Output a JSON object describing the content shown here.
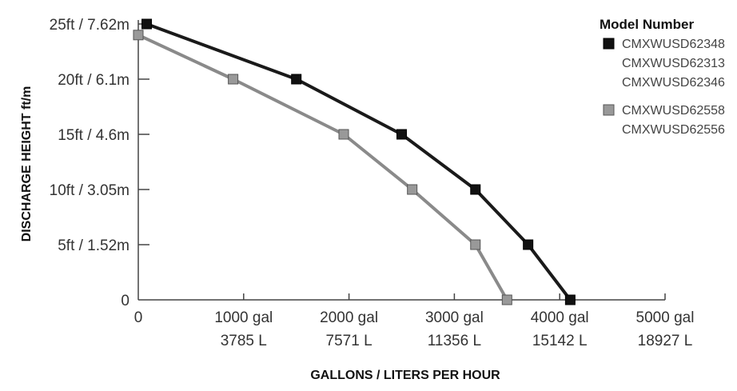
{
  "chart_data": {
    "type": "line",
    "title": "",
    "xlabel": "GALLONS / LITERS PER HOUR",
    "ylabel": "DISCHARGE HEIGHT ft/m",
    "xlim": [
      0,
      5000
    ],
    "ylim": [
      0,
      25
    ],
    "x_ticks": [
      {
        "value": 0,
        "line1": "0",
        "line2": ""
      },
      {
        "value": 1000,
        "line1": "1000 gal",
        "line2": "3785 L"
      },
      {
        "value": 2000,
        "line1": "2000 gal",
        "line2": "7571 L"
      },
      {
        "value": 3000,
        "line1": "3000 gal",
        "line2": "11356 L"
      },
      {
        "value": 4000,
        "line1": "4000 gal",
        "line2": "15142 L"
      },
      {
        "value": 5000,
        "line1": "5000 gal",
        "line2": "18927 L"
      }
    ],
    "y_ticks": [
      {
        "value": 0,
        "label": "0"
      },
      {
        "value": 5,
        "label": "5ft / 1.52m"
      },
      {
        "value": 10,
        "label": "10ft / 3.05m"
      },
      {
        "value": 15,
        "label": "15ft / 4.6m"
      },
      {
        "value": 20,
        "label": "20ft / 6.1m"
      },
      {
        "value": 25,
        "label": "25ft / 7.62m"
      }
    ],
    "grid": false,
    "legend_title": "Model Number",
    "legend_position": "top-right",
    "series": [
      {
        "name": "CMXWUSD62348 / CMXWUSD62313 / CMXWUSD62346",
        "models": [
          "CMXWUSD62348",
          "CMXWUSD62313",
          "CMXWUSD62346"
        ],
        "color": "#1a1a1a",
        "marker_color": "#111111",
        "points": [
          [
            80,
            25
          ],
          [
            1500,
            20
          ],
          [
            2500,
            15
          ],
          [
            3200,
            10
          ],
          [
            3700,
            5
          ],
          [
            4100,
            0
          ]
        ]
      },
      {
        "name": "CMXWUSD62558 / CMXWUSD62556",
        "models": [
          "CMXWUSD62558",
          "CMXWUSD62556"
        ],
        "color": "#8a8a8a",
        "marker_color": "#999999",
        "points": [
          [
            0,
            24
          ],
          [
            900,
            20
          ],
          [
            1950,
            15
          ],
          [
            2600,
            10
          ],
          [
            3200,
            5
          ],
          [
            3500,
            0
          ]
        ]
      }
    ]
  }
}
